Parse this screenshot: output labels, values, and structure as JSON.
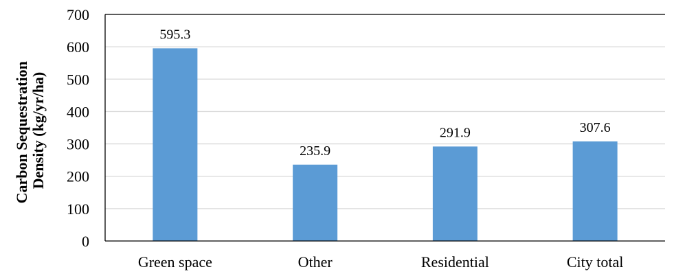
{
  "chart_data": {
    "type": "bar",
    "categories": [
      "Green space",
      "Other",
      "Residential",
      "City total"
    ],
    "values": [
      595.3,
      235.9,
      291.9,
      307.6
    ],
    "data_labels": [
      "595.3",
      "235.9",
      "291.9",
      "307.6"
    ],
    "title": "",
    "xlabel": "",
    "ylabel_lines": [
      "Carbon Sequestration",
      "Density (kg/yr/ha)"
    ],
    "ylim": [
      0,
      700
    ],
    "yticks": [
      0,
      100,
      200,
      300,
      400,
      500,
      600,
      700
    ],
    "grid": true,
    "legend": "none",
    "colors": {
      "bar": "#5b9bd5",
      "grid": "#d9d9d9",
      "axis": "#000000"
    }
  }
}
